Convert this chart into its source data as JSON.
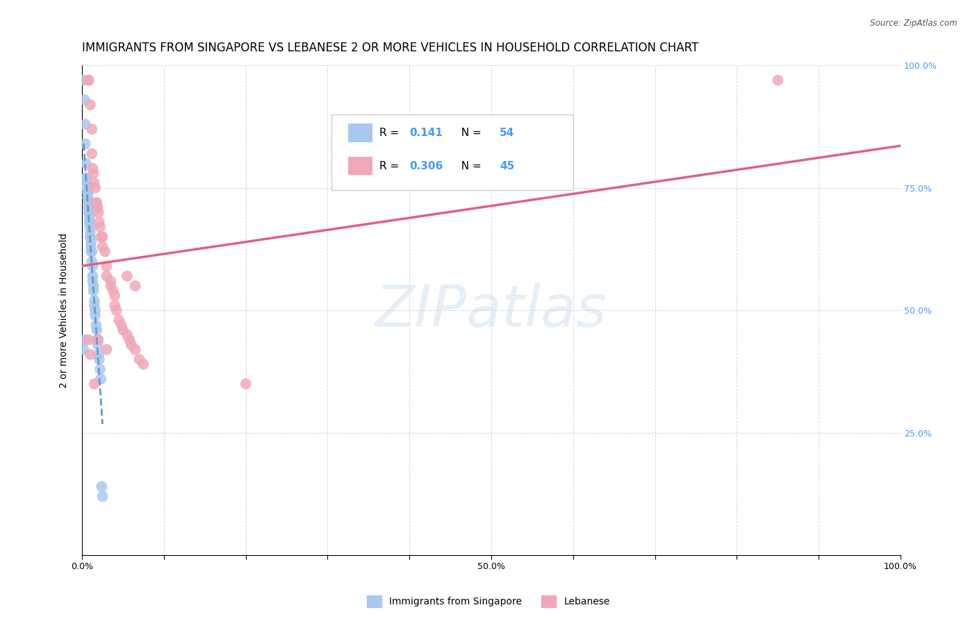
{
  "title": "IMMIGRANTS FROM SINGAPORE VS LEBANESE 2 OR MORE VEHICLES IN HOUSEHOLD CORRELATION CHART",
  "source": "Source: ZipAtlas.com",
  "ylabel": "2 or more Vehicles in Household",
  "xlim": [
    0,
    1
  ],
  "ylim": [
    0,
    1
  ],
  "watermark": "ZIPatlas",
  "singapore_color": "#a8c8f0",
  "lebanese_color": "#f0a8b8",
  "singapore_line_color": "#6699cc",
  "lebanese_line_color": "#e06080",
  "singapore_R": 0.141,
  "singapore_N": 54,
  "lebanese_R": 0.306,
  "lebanese_N": 45,
  "singapore_points": [
    [
      0.002,
      0.97
    ],
    [
      0.003,
      0.93
    ],
    [
      0.004,
      0.88
    ],
    [
      0.004,
      0.84
    ],
    [
      0.005,
      0.8
    ],
    [
      0.005,
      0.77
    ],
    [
      0.005,
      0.77
    ],
    [
      0.006,
      0.76
    ],
    [
      0.006,
      0.75
    ],
    [
      0.006,
      0.75
    ],
    [
      0.007,
      0.75
    ],
    [
      0.007,
      0.74
    ],
    [
      0.007,
      0.74
    ],
    [
      0.007,
      0.73
    ],
    [
      0.007,
      0.73
    ],
    [
      0.008,
      0.72
    ],
    [
      0.008,
      0.72
    ],
    [
      0.008,
      0.71
    ],
    [
      0.008,
      0.71
    ],
    [
      0.008,
      0.7
    ],
    [
      0.009,
      0.7
    ],
    [
      0.009,
      0.69
    ],
    [
      0.009,
      0.68
    ],
    [
      0.009,
      0.68
    ],
    [
      0.01,
      0.67
    ],
    [
      0.01,
      0.66
    ],
    [
      0.01,
      0.65
    ],
    [
      0.01,
      0.65
    ],
    [
      0.011,
      0.64
    ],
    [
      0.011,
      0.63
    ],
    [
      0.011,
      0.62
    ],
    [
      0.012,
      0.62
    ],
    [
      0.012,
      0.6
    ],
    [
      0.013,
      0.59
    ],
    [
      0.013,
      0.57
    ],
    [
      0.013,
      0.56
    ],
    [
      0.014,
      0.55
    ],
    [
      0.014,
      0.54
    ],
    [
      0.015,
      0.52
    ],
    [
      0.015,
      0.51
    ],
    [
      0.016,
      0.5
    ],
    [
      0.016,
      0.49
    ],
    [
      0.017,
      0.47
    ],
    [
      0.018,
      0.46
    ],
    [
      0.018,
      0.44
    ],
    [
      0.019,
      0.43
    ],
    [
      0.02,
      0.41
    ],
    [
      0.021,
      0.4
    ],
    [
      0.022,
      0.38
    ],
    [
      0.023,
      0.36
    ],
    [
      0.024,
      0.14
    ],
    [
      0.025,
      0.12
    ],
    [
      0.002,
      0.42
    ],
    [
      0.003,
      0.44
    ]
  ],
  "lebanese_points": [
    [
      0.008,
      0.97
    ],
    [
      0.008,
      0.97
    ],
    [
      0.01,
      0.92
    ],
    [
      0.012,
      0.87
    ],
    [
      0.012,
      0.82
    ],
    [
      0.013,
      0.79
    ],
    [
      0.014,
      0.78
    ],
    [
      0.015,
      0.76
    ],
    [
      0.016,
      0.75
    ],
    [
      0.017,
      0.72
    ],
    [
      0.018,
      0.72
    ],
    [
      0.019,
      0.71
    ],
    [
      0.02,
      0.7
    ],
    [
      0.021,
      0.68
    ],
    [
      0.022,
      0.67
    ],
    [
      0.023,
      0.65
    ],
    [
      0.025,
      0.65
    ],
    [
      0.025,
      0.63
    ],
    [
      0.028,
      0.62
    ],
    [
      0.03,
      0.59
    ],
    [
      0.03,
      0.57
    ],
    [
      0.035,
      0.56
    ],
    [
      0.035,
      0.55
    ],
    [
      0.038,
      0.54
    ],
    [
      0.04,
      0.53
    ],
    [
      0.04,
      0.51
    ],
    [
      0.042,
      0.5
    ],
    [
      0.045,
      0.48
    ],
    [
      0.048,
      0.47
    ],
    [
      0.05,
      0.46
    ],
    [
      0.055,
      0.45
    ],
    [
      0.058,
      0.44
    ],
    [
      0.06,
      0.43
    ],
    [
      0.065,
      0.42
    ],
    [
      0.07,
      0.4
    ],
    [
      0.075,
      0.39
    ],
    [
      0.055,
      0.57
    ],
    [
      0.065,
      0.55
    ],
    [
      0.008,
      0.44
    ],
    [
      0.01,
      0.41
    ],
    [
      0.015,
      0.35
    ],
    [
      0.02,
      0.44
    ],
    [
      0.03,
      0.42
    ],
    [
      0.85,
      0.97
    ],
    [
      0.2,
      0.35
    ]
  ],
  "background_color": "#ffffff",
  "grid_color": "#cccccc",
  "title_fontsize": 12,
  "axis_label_fontsize": 10,
  "tick_fontsize": 9,
  "legend_fontsize": 11
}
